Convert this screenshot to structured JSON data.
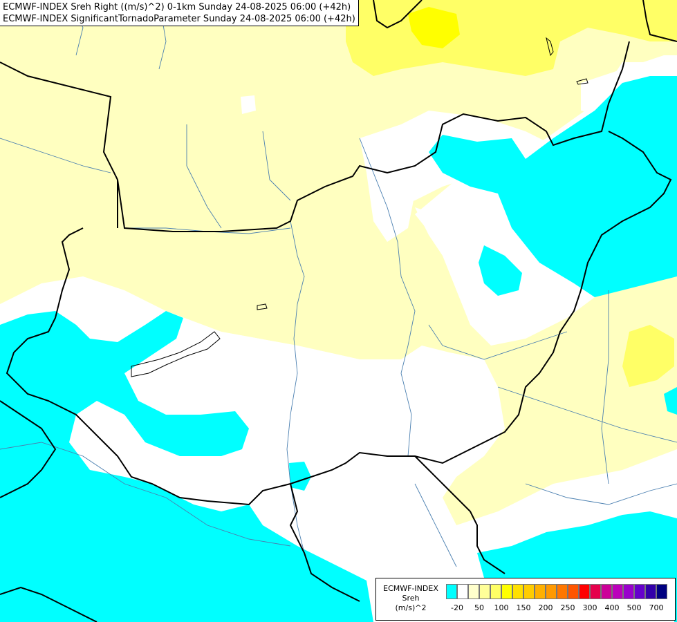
{
  "title": {
    "line1": "ECMWF-INDEX Sreh Right ((m/s)^2) 0-1km Sunday 24-08-2025 06:00 (+42h)",
    "line2": "ECMWF-INDEX SignificantTornadoParameter Sunday 24-08-2025 06:00 (+42h)"
  },
  "legend": {
    "line1": "ECMWF-INDEX",
    "line2": "Sreh",
    "line3": "(m/s)^2",
    "swatches": [
      "#00ffff",
      "#ffffff",
      "#ffffcc",
      "#ffff99",
      "#ffff66",
      "#ffff00",
      "#ffe000",
      "#ffcc00",
      "#ffb000",
      "#ff9900",
      "#ff7700",
      "#ff5500",
      "#ff0000",
      "#e6004c",
      "#cc0099",
      "#bb00bb",
      "#9900cc",
      "#6600cc",
      "#3300aa",
      "#000080"
    ],
    "ticks": [
      "-20",
      "50",
      "100",
      "150",
      "200",
      "250",
      "300",
      "400",
      "500",
      "700"
    ]
  },
  "colors": {
    "cyan_region": "#00ffff",
    "pale_yellow_region": "#ffffc0",
    "yellow_region": "#ffff66",
    "bright_yellow_region": "#ffff00",
    "border_line": "#000000",
    "river_line": "#4a7fb0"
  }
}
